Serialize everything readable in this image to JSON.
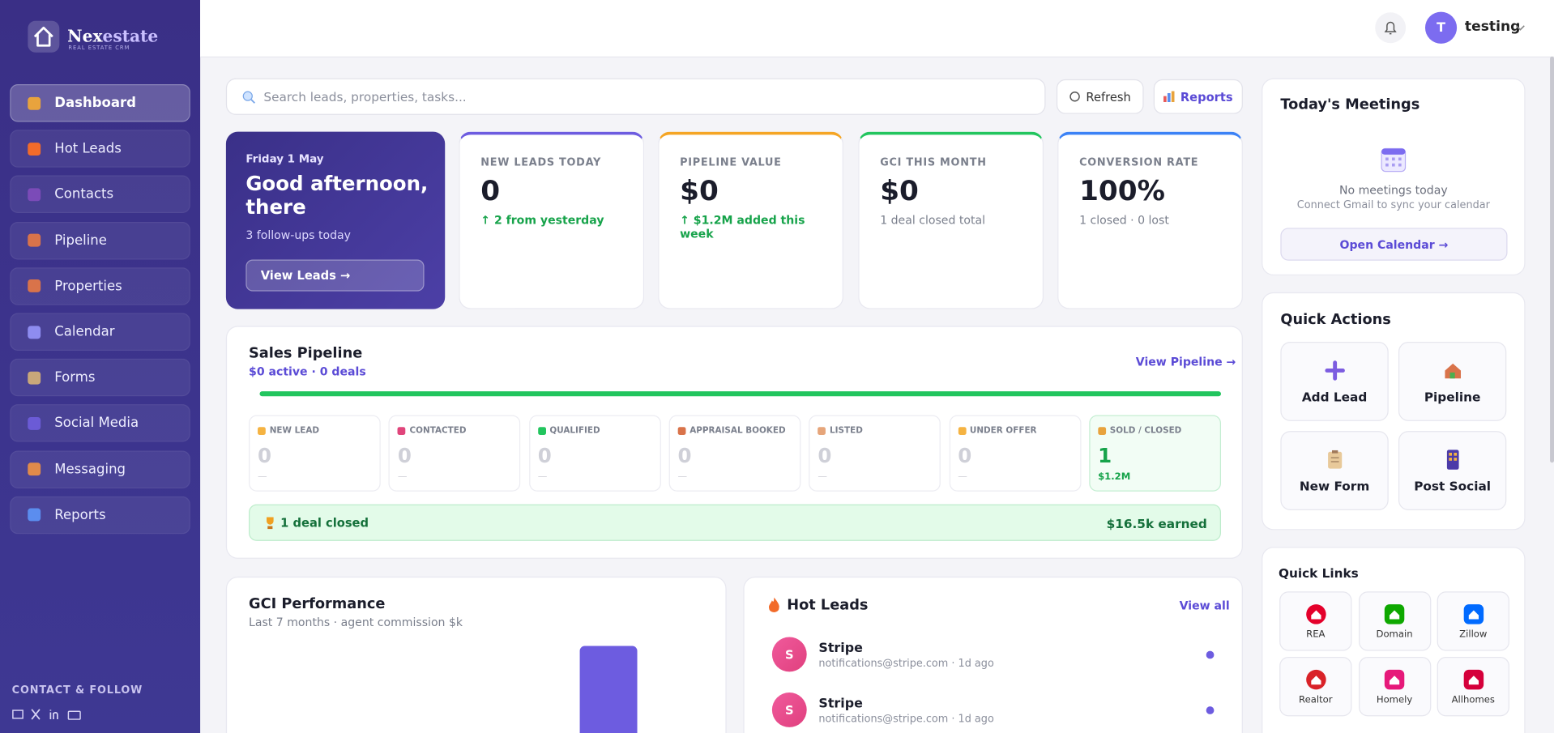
{
  "brand": {
    "name_a": "Nex",
    "name_b": "estate",
    "tagline": "REAL ESTATE CRM"
  },
  "nav": [
    {
      "label": "Dashboard",
      "icon": "#e8a33d",
      "active": true
    },
    {
      "label": "Hot Leads",
      "icon": "#f26b2a"
    },
    {
      "label": "Contacts",
      "icon": "#7b4bb8"
    },
    {
      "label": "Pipeline",
      "icon": "#d9734a"
    },
    {
      "label": "Properties",
      "icon": "#d9734a"
    },
    {
      "label": "Calendar",
      "icon": "#8e8cf0"
    },
    {
      "label": "Forms",
      "icon": "#c9a77a"
    },
    {
      "label": "Social Media",
      "icon": "#6b5bd6"
    },
    {
      "label": "Messaging",
      "icon": "#e08a4a"
    },
    {
      "label": "Reports",
      "icon": "#5b8def"
    }
  ],
  "sidebar_footer": {
    "heading": "CONTACT & FOLLOW"
  },
  "topbar": {
    "user_initial": "T",
    "user_name": "testing"
  },
  "search": {
    "placeholder": "Search leads, properties, tasks..."
  },
  "buttons": {
    "refresh": "Refresh",
    "reports": "Reports"
  },
  "greeting": {
    "date": "Friday 1 May",
    "title": "Good afternoon, there",
    "subtitle": "3 follow-ups today",
    "button": "View Leads →"
  },
  "stats": [
    {
      "label": "NEW LEADS TODAY",
      "value": "0",
      "note": "↑ 2 from yesterday",
      "accent": "#6d5ce0",
      "note_color": "#16a34a"
    },
    {
      "label": "PIPELINE VALUE",
      "value": "$0",
      "note": "↑ $1.2M added this week",
      "accent": "#f5a524",
      "note_color": "#16a34a"
    },
    {
      "label": "GCI THIS MONTH",
      "value": "$0",
      "note": "1 deal closed total",
      "accent": "#22c55e",
      "note_color": "#7a7f8c"
    },
    {
      "label": "CONVERSION RATE",
      "value": "100%",
      "note": "1 closed · 0 lost",
      "accent": "#3b82f6",
      "note_color": "#7a7f8c"
    }
  ],
  "pipeline": {
    "title": "Sales Pipeline",
    "subtitle": "$0 active · 0 deals",
    "link": "View Pipeline →",
    "stages": [
      {
        "name": "NEW LEAD",
        "count": "0",
        "sub": "—",
        "icon": "#f5b342"
      },
      {
        "name": "CONTACTED",
        "count": "0",
        "sub": "—",
        "icon": "#e0457b"
      },
      {
        "name": "QUALIFIED",
        "count": "0",
        "sub": "—",
        "icon": "#22c55e"
      },
      {
        "name": "APPRAISAL BOOKED",
        "count": "0",
        "sub": "—",
        "icon": "#d9734a"
      },
      {
        "name": "LISTED",
        "count": "0",
        "sub": "—",
        "icon": "#e6a57a"
      },
      {
        "name": "UNDER OFFER",
        "count": "0",
        "sub": "—",
        "icon": "#f5b342"
      },
      {
        "name": "SOLD / CLOSED",
        "count": "1",
        "sub": "$1.2M",
        "icon": "#e8a33d",
        "closed": true
      }
    ],
    "banner": {
      "left": "1 deal closed",
      "right": "$16.5k earned"
    }
  },
  "gci": {
    "title": "GCI Performance",
    "subtitle": "Last 7 months · agent commission $k"
  },
  "hot_leads": {
    "title": "Hot Leads",
    "link": "View all",
    "items": [
      {
        "initial": "S",
        "name": "Stripe",
        "detail": "notifications@stripe.com · 1d ago"
      },
      {
        "initial": "S",
        "name": "Stripe",
        "detail": "notifications@stripe.com · 1d ago"
      }
    ]
  },
  "meetings": {
    "title": "Today's Meetings",
    "empty": "No meetings today",
    "hint": "Connect Gmail to sync your calendar",
    "button": "Open Calendar →"
  },
  "quick_actions": {
    "title": "Quick Actions",
    "items": [
      "Add Lead",
      "Pipeline",
      "New Form",
      "Post Social"
    ]
  },
  "quick_links": {
    "title": "Quick Links",
    "items": [
      {
        "label": "REA",
        "color": "#e4002b"
      },
      {
        "label": "Domain",
        "color": "#0ea800"
      },
      {
        "label": "Zillow",
        "color": "#006aff"
      },
      {
        "label": "Realtor",
        "color": "#d92228"
      },
      {
        "label": "Homely",
        "color": "#e6197a"
      },
      {
        "label": "Allhomes",
        "color": "#d5003b"
      }
    ]
  }
}
